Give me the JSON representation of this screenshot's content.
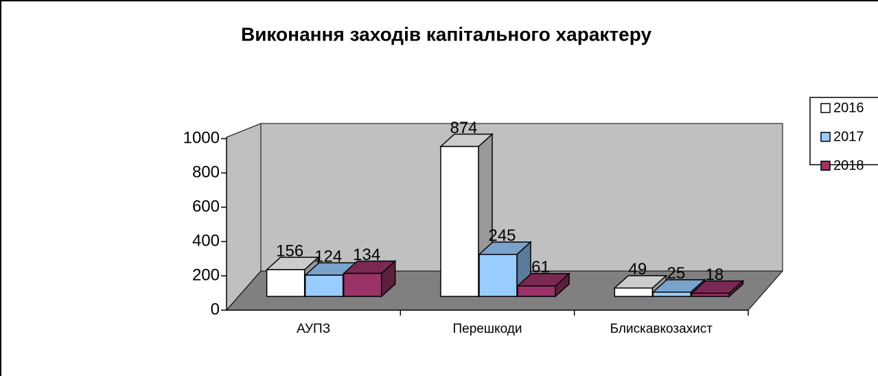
{
  "chart_data": {
    "type": "bar3d",
    "title": "Виконання заходів капітального характеру",
    "categories": [
      "АУПЗ",
      "Перешкоди",
      "Блискавкозахист"
    ],
    "series": [
      {
        "name": "2016",
        "color": "#ffffff",
        "values": [
          156,
          874,
          49
        ]
      },
      {
        "name": "2017",
        "color": "#99ccff",
        "values": [
          124,
          245,
          25
        ]
      },
      {
        "name": "2018",
        "color": "#993366",
        "values": [
          134,
          61,
          18
        ]
      }
    ],
    "ylim": [
      0,
      1000
    ],
    "yticks": [
      0,
      200,
      400,
      600,
      800,
      1000
    ],
    "legend": "right"
  }
}
